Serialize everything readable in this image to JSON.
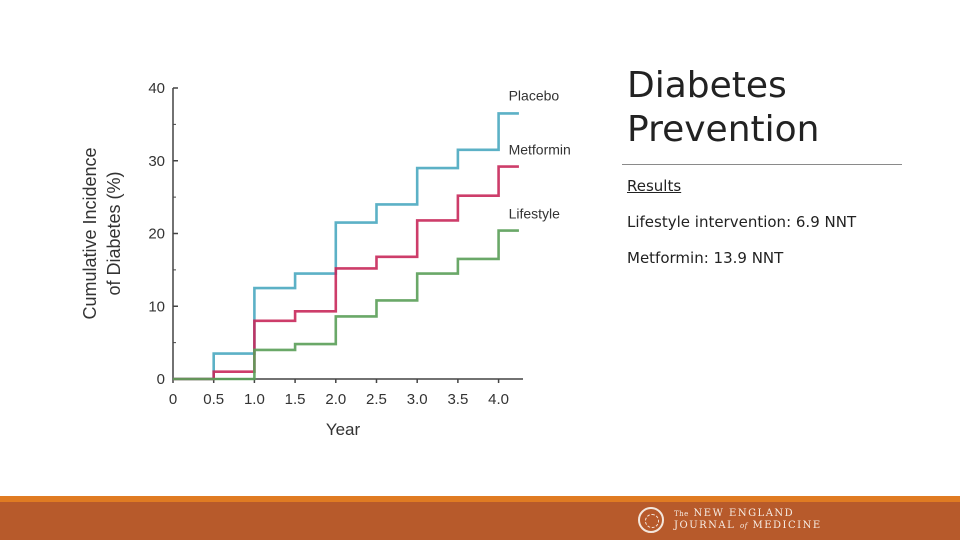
{
  "title": "Diabetes Prevention",
  "results_heading": "Results",
  "results": [
    "Lifestyle intervention: 6.9 NNT",
    "Metformin: 13.9 NNT"
  ],
  "journal": {
    "the": "The",
    "line1": "NEW ENGLAND",
    "line2a": "JOURNAL",
    "of": "of",
    "line2b": "MEDICINE"
  },
  "colors": {
    "placebo": "#4aa8c0",
    "metformin": "#c8285a",
    "lifestyle": "#5a9e58",
    "footer": "#b75a2b",
    "footer_accent": "#e07b22"
  },
  "chart_data": {
    "type": "line",
    "step": true,
    "title": "",
    "xlabel": "Year",
    "ylabel_line1": "Cumulative Incidence",
    "ylabel_line2": "of Diabetes (%)",
    "xlim": [
      0,
      4.3
    ],
    "ylim": [
      0,
      40
    ],
    "x_ticks": [
      0,
      0.5,
      1.0,
      1.5,
      2.0,
      2.5,
      3.0,
      3.5,
      4.0
    ],
    "x_tick_labels": [
      "0",
      "0.5",
      "1.0",
      "1.5",
      "2.0",
      "2.5",
      "3.0",
      "3.5",
      "4.0"
    ],
    "y_ticks": [
      0,
      10,
      20,
      30,
      40
    ],
    "y_tick_labels": [
      "0",
      "10",
      "20",
      "30",
      "40"
    ],
    "x": [
      0,
      0.5,
      1.0,
      1.5,
      2.0,
      2.5,
      3.0,
      3.5,
      4.0,
      4.25
    ],
    "series": [
      {
        "name": "Placebo",
        "values": [
          0,
          3.5,
          12.5,
          14.5,
          21.5,
          24,
          29,
          31.5,
          36.5,
          36.5
        ]
      },
      {
        "name": "Metformin",
        "values": [
          0,
          1,
          8,
          9.3,
          15.2,
          16.8,
          21.8,
          25.2,
          29.2,
          29.2
        ]
      },
      {
        "name": "Lifestyle",
        "values": [
          0,
          0,
          4,
          4.8,
          8.6,
          10.8,
          14.5,
          16.5,
          20.4,
          20.4
        ]
      }
    ],
    "legend": [
      "Placebo",
      "Metformin",
      "Lifestyle"
    ]
  }
}
